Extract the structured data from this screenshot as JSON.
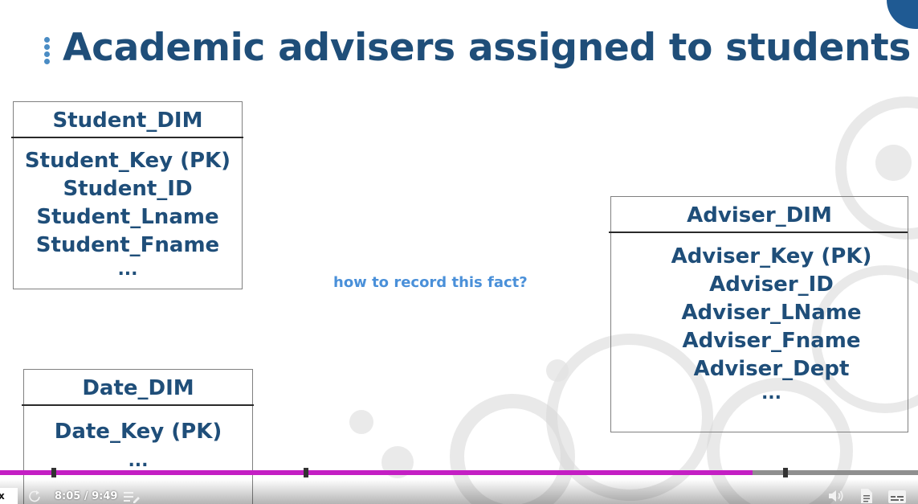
{
  "slide": {
    "title": "Academic advisers assigned to students",
    "question": "how to record this fact?"
  },
  "entities": {
    "student_dim": {
      "name": "Student_DIM",
      "attributes": [
        "Student_Key (PK)",
        "Student_ID",
        "Student_Lname",
        "Student_Fname",
        "..."
      ]
    },
    "adviser_dim": {
      "name": "Adviser_DIM",
      "attributes": [
        "Adviser_Key (PK)",
        "Adviser_ID",
        "Adviser_LName",
        "Adviser_Fname",
        "Adviser_Dept",
        "..."
      ]
    },
    "date_dim": {
      "name": "Date_DIM",
      "attributes": [
        "Date_Key (PK)",
        "..."
      ]
    }
  },
  "player": {
    "time_display": "8:05 / 9:49",
    "progress_fraction": 0.82,
    "corner_badge": "x",
    "icons": [
      "replay-icon",
      "playlist-icon",
      "volume-icon",
      "transcript-icon",
      "captions-icon"
    ],
    "colors": {
      "progress": "#c41fc4",
      "track": "#8f8f8f"
    }
  },
  "colors": {
    "title": "#1f4e79",
    "entity_text": "#1f4e79",
    "question": "#4a90d9",
    "accent": "#1f5a93"
  }
}
